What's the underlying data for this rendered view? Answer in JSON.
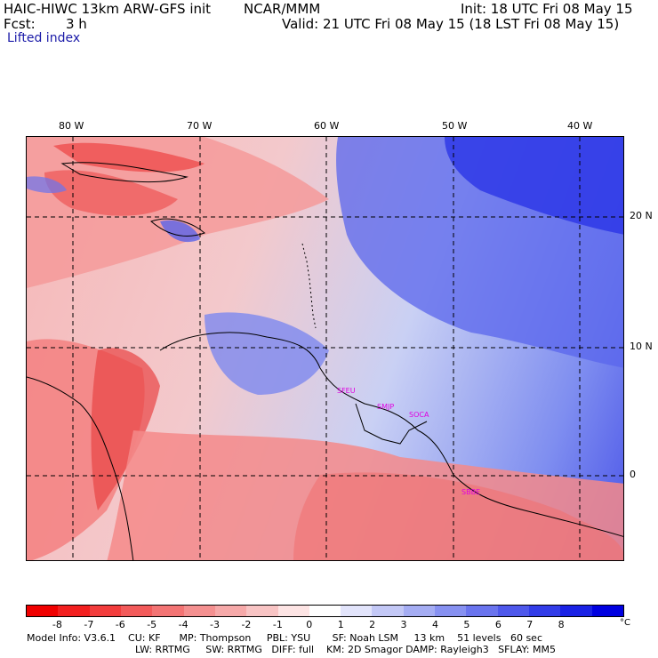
{
  "header": {
    "model": "HAIC-HIWC 13km ARW-GFS init",
    "agency": "NCAR/MMM",
    "init": "Init: 18 UTC Fri 08 May 15",
    "fcst_label": "Fcst:",
    "fcst_value": "3 h",
    "valid": "Valid: 21 UTC Fri 08 May 15 (18 LST Fri 08 May 15)",
    "field": "Lifted index"
  },
  "map": {
    "lon_labels": [
      "80 W",
      "70 W",
      "60 W",
      "50 W",
      "40 W"
    ],
    "lat_labels": [
      "20 N",
      "10 N",
      "0"
    ],
    "stations": [
      "SFEU",
      "SMJP",
      "SOCA",
      "SBBE"
    ],
    "colors": {
      "station": "#e000e0",
      "border": "#000000",
      "grid": "#000000"
    }
  },
  "colorbar": {
    "ticks": [
      "-8",
      "-7",
      "-6",
      "-5",
      "-4",
      "-3",
      "-2",
      "-1",
      "0",
      "1",
      "2",
      "3",
      "4",
      "5",
      "6",
      "7",
      "8"
    ],
    "unit": "°C",
    "colors": [
      "#f00000",
      "#f21f1f",
      "#f23c3c",
      "#f25a5a",
      "#f37474",
      "#f49090",
      "#f6a9a9",
      "#f8c4c4",
      "#fde4e4",
      "#ffffff",
      "#e2e4fb",
      "#c3c8f6",
      "#a5adf3",
      "#8791f1",
      "#6a74ee",
      "#4e58eb",
      "#323ce8",
      "#1a22e5",
      "#0000e0"
    ]
  },
  "footer": {
    "line1": "Model Info: V3.6.1    CU: KF      MP: Thompson     PBL: YSU       SF: Noah LSM     13 km    51 levels   60 sec",
    "line2": "LW: RRTMG     SW: RRTMG   DIFF: full    KM: 2D Smagor DAMP: Rayleigh3   SFLAY: MM5"
  }
}
